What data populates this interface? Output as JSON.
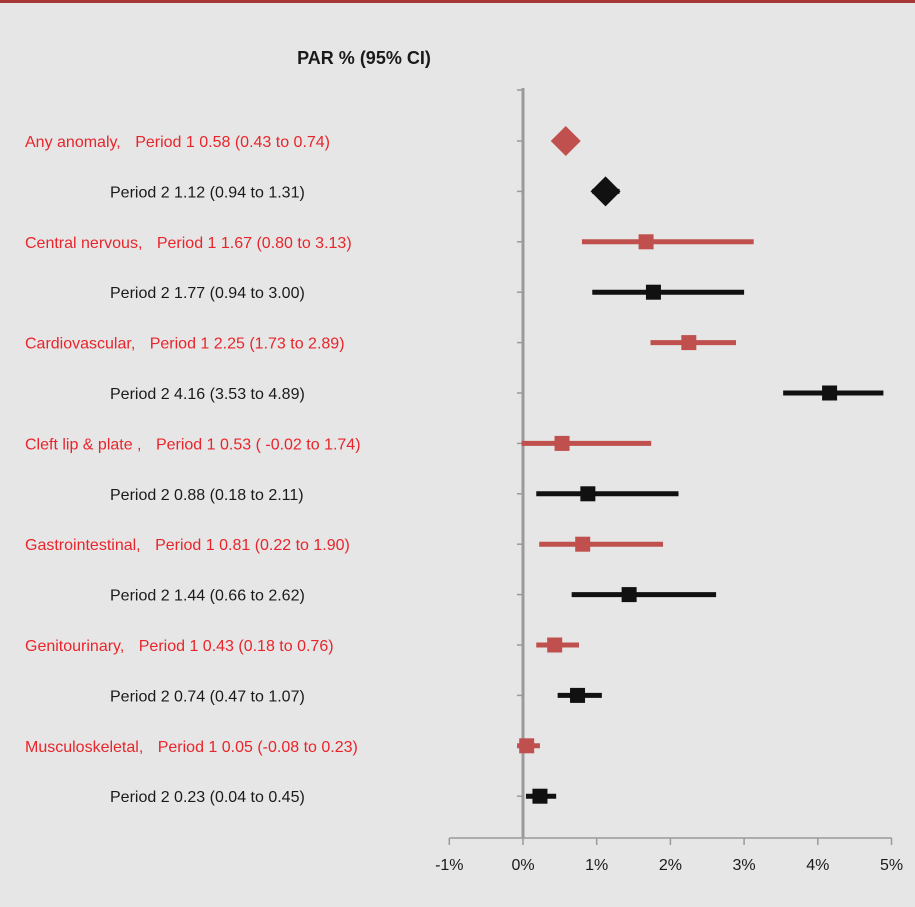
{
  "colors": {
    "period1": "#c0504d",
    "period1_text": "#e8252b",
    "period2": "#111111",
    "axis": "#9a9a9a"
  },
  "chart_data": {
    "type": "forest",
    "title": "PAR % (95% CI)",
    "xlim": [
      -1,
      5
    ],
    "x_ticks": [
      -1,
      0,
      1,
      2,
      3,
      4,
      5
    ],
    "x_tick_labels": [
      "-1%",
      "0%",
      "1%",
      "2%",
      "3%",
      "4%",
      "5%"
    ],
    "rows": [
      {
        "group": "Any anomaly,",
        "period": "Period 1",
        "estimate": 0.58,
        "lower": 0.43,
        "upper": 0.74,
        "ci_text": "0.58 (0.43 to 0.74)",
        "marker": "diamond"
      },
      {
        "group": "",
        "period": "Period 2",
        "estimate": 1.12,
        "lower": 0.94,
        "upper": 1.31,
        "ci_text": "1.12 (0.94 to 1.31)",
        "marker": "diamond"
      },
      {
        "group": "Central nervous,",
        "period": "Period 1",
        "estimate": 1.67,
        "lower": 0.8,
        "upper": 3.13,
        "ci_text": "1.67 (0.80 to 3.13)",
        "marker": "square"
      },
      {
        "group": "",
        "period": "Period 2",
        "estimate": 1.77,
        "lower": 0.94,
        "upper": 3.0,
        "ci_text": "1.77 (0.94 to 3.00)",
        "marker": "square"
      },
      {
        "group": "Cardiovascular,",
        "period": "Period 1",
        "estimate": 2.25,
        "lower": 1.73,
        "upper": 2.89,
        "ci_text": "2.25 (1.73 to 2.89)",
        "marker": "square"
      },
      {
        "group": "",
        "period": "Period 2",
        "estimate": 4.16,
        "lower": 3.53,
        "upper": 4.89,
        "ci_text": "4.16 (3.53 to 4.89)",
        "marker": "square"
      },
      {
        "group": "Cleft lip & plate ,",
        "period": "Period 1",
        "estimate": 0.53,
        "lower": -0.02,
        "upper": 1.74,
        "ci_text": "0.53 ( -0.02 to 1.74)",
        "marker": "square"
      },
      {
        "group": "",
        "period": "Period 2",
        "estimate": 0.88,
        "lower": 0.18,
        "upper": 2.11,
        "ci_text": "0.88 (0.18 to 2.11)",
        "marker": "square"
      },
      {
        "group": "Gastrointestinal,",
        "period": "Period 1",
        "estimate": 0.81,
        "lower": 0.22,
        "upper": 1.9,
        "ci_text": "0.81 (0.22 to 1.90)",
        "marker": "square"
      },
      {
        "group": "",
        "period": "Period 2",
        "estimate": 1.44,
        "lower": 0.66,
        "upper": 2.62,
        "ci_text": "1.44 (0.66 to 2.62)",
        "marker": "square"
      },
      {
        "group": "Genitourinary,",
        "period": "Period 1",
        "estimate": 0.43,
        "lower": 0.18,
        "upper": 0.76,
        "ci_text": "0.43 (0.18 to 0.76)",
        "marker": "square"
      },
      {
        "group": "",
        "period": "Period 2",
        "estimate": 0.74,
        "lower": 0.47,
        "upper": 1.07,
        "ci_text": "0.74 (0.47 to 1.07)",
        "marker": "square"
      },
      {
        "group": "Musculoskeletal,",
        "period": "Period 1",
        "estimate": 0.05,
        "lower": -0.08,
        "upper": 0.23,
        "ci_text": "0.05 (-0.08 to 0.23)",
        "marker": "square"
      },
      {
        "group": "",
        "period": "Period 2",
        "estimate": 0.23,
        "lower": 0.04,
        "upper": 0.45,
        "ci_text": "0.23 (0.04 to 0.45)",
        "marker": "square"
      }
    ]
  }
}
